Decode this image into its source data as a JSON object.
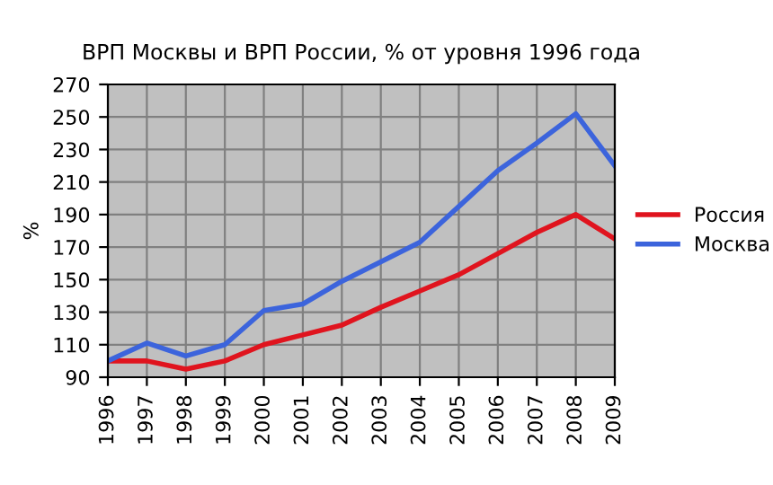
{
  "chart_data": {
    "type": "line",
    "title": "ВРП Москвы и ВРП России, % от уровня 1996 года",
    "ylabel": "%",
    "categories": [
      "1996",
      "1997",
      "1998",
      "1999",
      "2000",
      "2001",
      "2002",
      "2003",
      "2004",
      "2005",
      "2006",
      "2007",
      "2008",
      "2009"
    ],
    "series": [
      {
        "name": "Россия",
        "color": "#e0141e",
        "values": [
          100,
          100,
          95,
          100,
          110,
          116,
          122,
          133,
          143,
          153,
          166,
          179,
          190,
          175
        ]
      },
      {
        "name": "Москва",
        "color": "#3c64dc",
        "values": [
          100,
          111,
          103,
          110,
          131,
          135,
          149,
          161,
          173,
          195,
          217,
          234,
          252,
          220
        ]
      }
    ],
    "ylim": [
      90,
      270
    ],
    "yticks": [
      90,
      110,
      130,
      150,
      170,
      190,
      210,
      230,
      250,
      270
    ],
    "grid": true,
    "legend": "right",
    "marker": "none",
    "line_style": "solid"
  }
}
